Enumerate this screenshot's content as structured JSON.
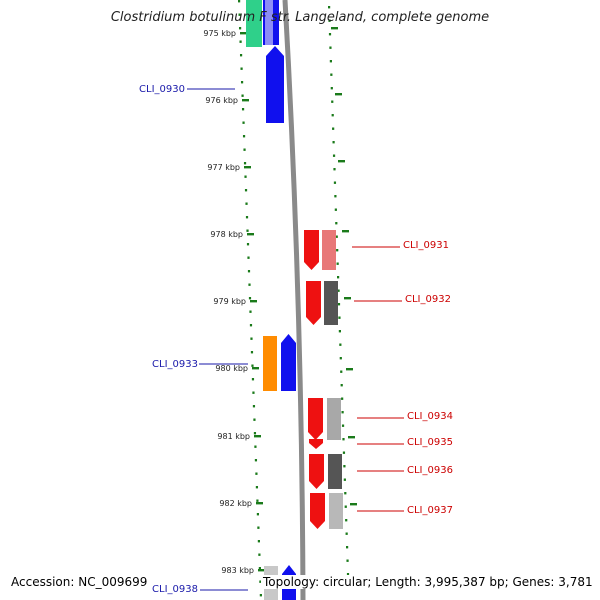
{
  "title": "Clostridium botulinum F str. Langeland, complete genome",
  "footer": {
    "accession": "Accession: NC_009699",
    "topology": "Topology: circular; Length: 3,995,387 bp; Genes: 3,781"
  },
  "colors": {
    "forward_label": "#1a1aaa",
    "reverse_label": "#cc0000",
    "tick": "#1a7a1a",
    "backbone": "#8a8a8a"
  },
  "ticks": [
    {
      "label": "975 kbp"
    },
    {
      "label": "976 kbp"
    },
    {
      "label": "977 kbp"
    },
    {
      "label": "978 kbp"
    },
    {
      "label": "979 kbp"
    },
    {
      "label": "980 kbp"
    },
    {
      "label": "981 kbp"
    },
    {
      "label": "982 kbp"
    },
    {
      "label": "983 kbp"
    }
  ],
  "gene_labels": [
    {
      "id": "CLI_0930",
      "strand": "forward"
    },
    {
      "id": "CLI_0931",
      "strand": "reverse"
    },
    {
      "id": "CLI_0932",
      "strand": "reverse"
    },
    {
      "id": "CLI_0933",
      "strand": "forward"
    },
    {
      "id": "CLI_0934",
      "strand": "reverse"
    },
    {
      "id": "CLI_0935",
      "strand": "reverse"
    },
    {
      "id": "CLI_0936",
      "strand": "reverse"
    },
    {
      "id": "CLI_0937",
      "strand": "reverse"
    },
    {
      "id": "CLI_0938",
      "strand": "forward"
    }
  ]
}
